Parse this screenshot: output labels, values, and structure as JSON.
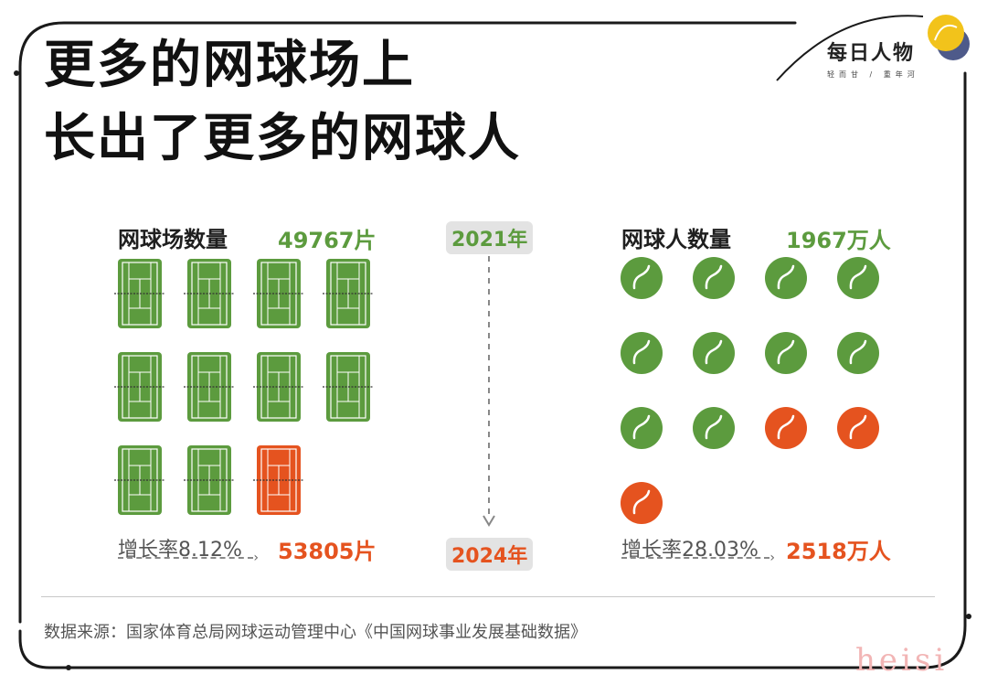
{
  "title_line1": "更多的网球场上",
  "title_line2": "长出了更多的网球人",
  "brand": {
    "name": "每日人物",
    "sub": "轻而甘 / 重年河"
  },
  "years": {
    "start": "2021年",
    "end": "2024年"
  },
  "courts": {
    "label": "网球场数量",
    "value_2021": "49767片",
    "growth": "增长率8.12%",
    "value_2024": "53805片",
    "icon_colors": [
      "#5c9b3e",
      "#5c9b3e",
      "#5c9b3e",
      "#5c9b3e",
      "#5c9b3e",
      "#5c9b3e",
      "#5c9b3e",
      "#5c9b3e",
      "#5c9b3e",
      "#5c9b3e",
      "#e5531f"
    ]
  },
  "players": {
    "label": "网球人数量",
    "value_2021": "1967万人",
    "growth": "增长率28.03%",
    "value_2024": "2518万人",
    "icon_colors": [
      "#5c9b3e",
      "#5c9b3e",
      "#5c9b3e",
      "#5c9b3e",
      "#5c9b3e",
      "#5c9b3e",
      "#5c9b3e",
      "#5c9b3e",
      "#5c9b3e",
      "#5c9b3e",
      "#e5531f",
      "#e5531f",
      "#e5531f"
    ]
  },
  "source": "数据来源：国家体育总局网球运动管理中心《中国网球事业发展基础数据》",
  "watermark": "heisi",
  "colors": {
    "green": "#5c9b3e",
    "orange": "#e5531f",
    "pill": "#e3e3e3"
  }
}
